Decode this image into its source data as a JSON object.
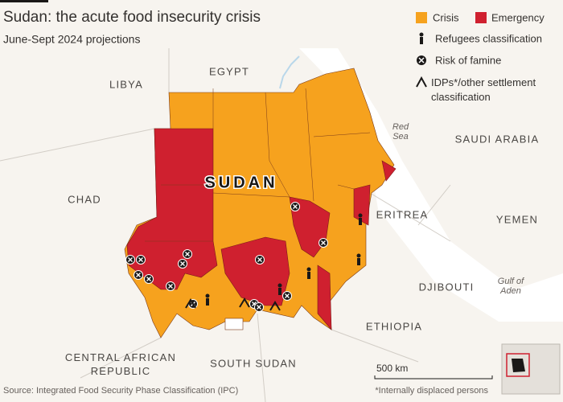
{
  "header": {
    "title": "Sudan: the acute food insecurity crisis",
    "subtitle": "June-Sept 2024 projections"
  },
  "legend": {
    "items": [
      "Crisis",
      "Emergency",
      "Refugees classification",
      "Risk of famine",
      "IDPs*/other settlement classification"
    ]
  },
  "map": {
    "country": "SUDAN",
    "neighbours": [
      "EGYPT",
      "LIBYA",
      "CHAD",
      "SAUDI ARABIA",
      "ERITREA",
      "YEMEN",
      "DJIBOUTI",
      "ETHIOPIA",
      "CENTRAL AFRICAN REPUBLIC",
      "SOUTH SUDAN"
    ],
    "seas": [
      "Red Sea",
      "Gulf of Aden"
    ],
    "scale": "500 km"
  },
  "footer": {
    "source": "Source: Integrated Food Security Phase Classification (IPC)",
    "note": "*Internally displaced persons"
  }
}
